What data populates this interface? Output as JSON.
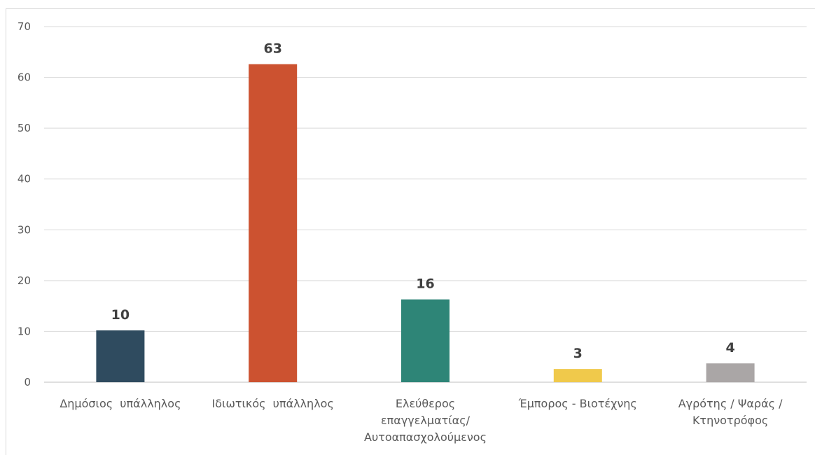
{
  "chart_data": {
    "type": "bar",
    "title": "",
    "xlabel": "",
    "ylabel": "",
    "categories": [
      [
        "Δημόσιος  υπάλληλος"
      ],
      [
        "Ιδιωτικός  υπάλληλος"
      ],
      [
        "Ελεύθερος",
        "επαγγελματίας/",
        "Αυτοαπασχολούμενος"
      ],
      [
        "Έμπορος - Βιοτέχνης"
      ],
      [
        "Αγρότης / Ψαράς /",
        "Κτηνοτρόφος"
      ]
    ],
    "values": [
      10.2,
      62.6,
      16.3,
      2.6,
      3.7
    ],
    "data_labels": [
      "10",
      "63",
      "16",
      "3",
      "4"
    ],
    "colors": [
      "#2f4b5f",
      "#cc5230",
      "#2e8577",
      "#f0c94b",
      "#aaa6a6"
    ],
    "ylim": [
      0,
      70
    ],
    "yticks": [
      0,
      10,
      20,
      30,
      40,
      50,
      60,
      70
    ],
    "grid": true,
    "legend": "none"
  }
}
